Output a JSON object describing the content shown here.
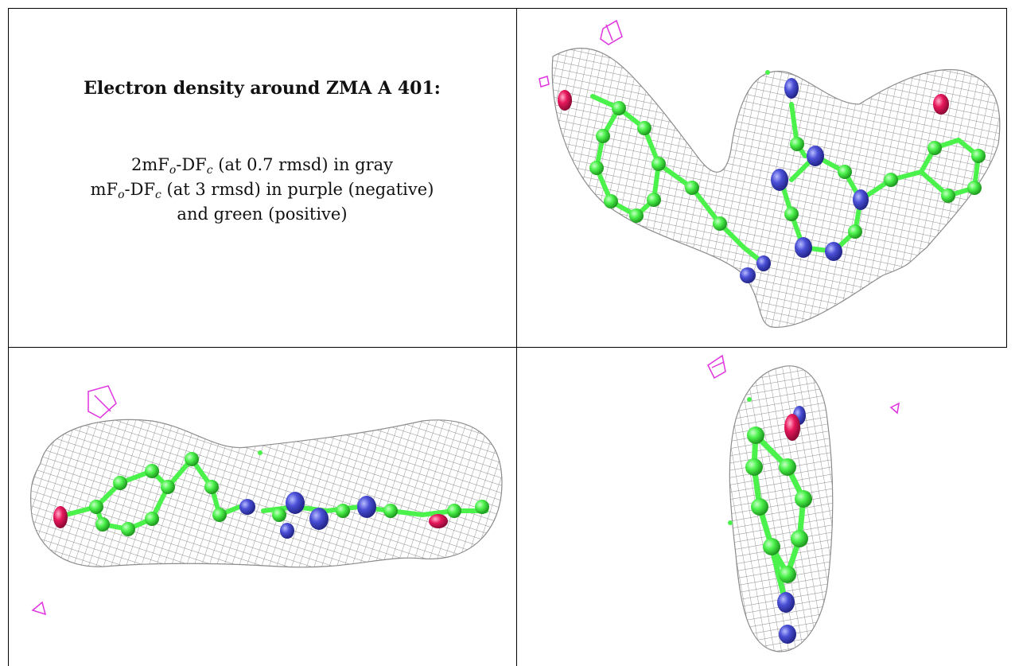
{
  "caption": {
    "title": "Electron density around ZMA A 401:",
    "line1_prefix": "2mF",
    "line1_sub1": "o",
    "line1_mid": "-DF",
    "line1_sub2": "c",
    "line1_suffix": " (at 0.7 rmsd) in gray",
    "line2_prefix": "mF",
    "line2_sub1": "o",
    "line2_mid": "-DF",
    "line2_sub2": "c",
    "line2_suffix": " (at 3 rmsd) in purple (negative)",
    "line3": "and green (positive)"
  },
  "colors": {
    "mesh_gray": "#8c8c8c",
    "carbon_green": "#4cf24c",
    "nitrogen_blue": "#4a4fd6",
    "oxygen_red": "#e8185c",
    "negative_purple": "#e032e0",
    "frame": "#000000"
  },
  "panels": [
    {
      "name": "density-view-top-right",
      "view": "front"
    },
    {
      "name": "density-view-bottom-left",
      "view": "edge"
    },
    {
      "name": "density-view-bottom-right",
      "view": "end-on"
    }
  ]
}
